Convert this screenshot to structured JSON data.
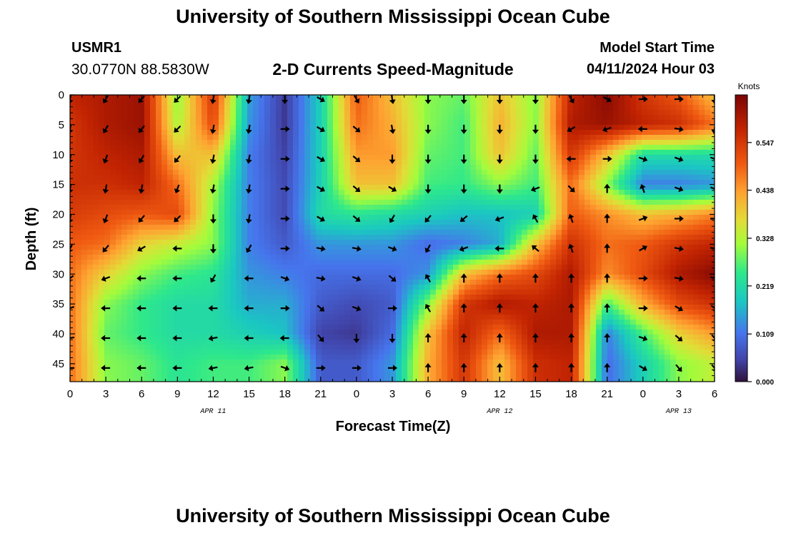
{
  "header": {
    "title": "University of Southern Mississippi Ocean Cube",
    "station_id": "USMR1",
    "station_coords": "30.0770N  88.5830W",
    "model_start_label": "Model Start Time",
    "model_start_value": "04/11/2024 Hour 03"
  },
  "footer": {
    "title": "University of Southern Mississippi Ocean Cube"
  },
  "chart_data": {
    "type": "heatmap",
    "title": "2-D Currents Speed-Magnitude",
    "xlabel": "Forecast Time(Z)",
    "ylabel": "Depth (ft)",
    "x_tick_labels": [
      "0",
      "3",
      "6",
      "9",
      "12",
      "15",
      "18",
      "21",
      "0",
      "3",
      "6",
      "9",
      "12",
      "15",
      "18",
      "21",
      "0",
      "3",
      "6"
    ],
    "date_labels": [
      {
        "text": "APR 11",
        "at_tick": 4
      },
      {
        "text": "APR 12",
        "at_tick": 12
      },
      {
        "text": "APR 13",
        "at_tick": 17
      }
    ],
    "y_ticks": [
      0,
      5,
      10,
      15,
      20,
      25,
      30,
      35,
      40,
      45
    ],
    "ylim": [
      0,
      48
    ],
    "colorbar": {
      "unit_label": "Knots",
      "ticks": [
        "0.547",
        "0.438",
        "0.328",
        "0.219",
        "0.109",
        "0.000"
      ],
      "range": [
        0,
        0.656
      ]
    },
    "depth_rows": [
      0,
      5,
      10,
      15,
      20,
      25,
      30,
      35,
      40,
      45
    ],
    "speed_grid": [
      [
        0.58,
        0.6,
        0.62,
        0.3,
        0.55,
        0.15,
        0.04,
        0.2,
        0.5,
        0.4,
        0.3,
        0.28,
        0.4,
        0.3,
        0.58,
        0.64,
        0.55,
        0.5,
        0.4
      ],
      [
        0.55,
        0.6,
        0.62,
        0.32,
        0.52,
        0.14,
        0.04,
        0.2,
        0.48,
        0.42,
        0.3,
        0.26,
        0.42,
        0.3,
        0.6,
        0.62,
        0.58,
        0.56,
        0.48
      ],
      [
        0.55,
        0.58,
        0.6,
        0.4,
        0.4,
        0.12,
        0.05,
        0.2,
        0.44,
        0.44,
        0.28,
        0.26,
        0.4,
        0.28,
        0.55,
        0.4,
        0.22,
        0.22,
        0.22
      ],
      [
        0.56,
        0.56,
        0.58,
        0.48,
        0.32,
        0.12,
        0.06,
        0.2,
        0.4,
        0.4,
        0.26,
        0.25,
        0.3,
        0.26,
        0.48,
        0.3,
        0.12,
        0.12,
        0.14
      ],
      [
        0.54,
        0.52,
        0.5,
        0.52,
        0.3,
        0.12,
        0.06,
        0.22,
        0.24,
        0.22,
        0.2,
        0.18,
        0.18,
        0.2,
        0.5,
        0.45,
        0.4,
        0.42,
        0.46
      ],
      [
        0.5,
        0.48,
        0.38,
        0.34,
        0.3,
        0.12,
        0.08,
        0.14,
        0.14,
        0.14,
        0.1,
        0.12,
        0.16,
        0.4,
        0.56,
        0.48,
        0.5,
        0.55,
        0.58
      ],
      [
        0.48,
        0.38,
        0.3,
        0.26,
        0.24,
        0.14,
        0.12,
        0.1,
        0.1,
        0.1,
        0.14,
        0.4,
        0.48,
        0.52,
        0.6,
        0.45,
        0.52,
        0.6,
        0.64
      ],
      [
        0.48,
        0.3,
        0.25,
        0.22,
        0.22,
        0.16,
        0.16,
        0.08,
        0.06,
        0.08,
        0.3,
        0.55,
        0.6,
        0.58,
        0.6,
        0.26,
        0.42,
        0.52,
        0.56
      ],
      [
        0.48,
        0.28,
        0.25,
        0.22,
        0.22,
        0.2,
        0.18,
        0.05,
        0.04,
        0.1,
        0.4,
        0.58,
        0.48,
        0.6,
        0.6,
        0.12,
        0.26,
        0.38,
        0.44
      ],
      [
        0.48,
        0.3,
        0.28,
        0.24,
        0.26,
        0.26,
        0.3,
        0.08,
        0.08,
        0.14,
        0.42,
        0.55,
        0.4,
        0.56,
        0.58,
        0.1,
        0.2,
        0.3,
        0.34
      ]
    ],
    "arrow_angles_deg": [
      [
        100,
        120,
        130,
        135,
        100,
        100,
        90,
        30,
        60,
        80,
        90,
        90,
        90,
        90,
        60,
        30,
        0,
        0,
        90
      ],
      [
        100,
        120,
        130,
        135,
        100,
        100,
        0,
        30,
        40,
        80,
        90,
        90,
        90,
        90,
        150,
        160,
        180,
        10,
        100
      ],
      [
        100,
        110,
        120,
        130,
        100,
        100,
        0,
        30,
        40,
        90,
        90,
        90,
        90,
        90,
        180,
        0,
        20,
        20,
        20
      ],
      [
        100,
        100,
        100,
        110,
        100,
        100,
        0,
        30,
        40,
        30,
        90,
        90,
        90,
        160,
        45,
        270,
        250,
        20,
        20
      ],
      [
        100,
        110,
        130,
        135,
        90,
        100,
        0,
        30,
        40,
        120,
        130,
        140,
        160,
        240,
        250,
        270,
        340,
        0,
        0
      ],
      [
        120,
        130,
        150,
        180,
        90,
        120,
        0,
        10,
        10,
        20,
        120,
        160,
        180,
        220,
        250,
        270,
        330,
        10,
        10
      ],
      [
        140,
        160,
        180,
        180,
        120,
        180,
        20,
        10,
        20,
        40,
        240,
        270,
        270,
        270,
        270,
        270,
        0,
        10,
        20
      ],
      [
        160,
        180,
        180,
        180,
        180,
        180,
        0,
        40,
        20,
        0,
        240,
        270,
        270,
        270,
        270,
        270,
        0,
        30,
        40
      ],
      [
        170,
        180,
        180,
        180,
        170,
        180,
        180,
        50,
        90,
        90,
        270,
        270,
        270,
        270,
        270,
        270,
        20,
        40,
        50
      ],
      [
        180,
        180,
        180,
        180,
        170,
        170,
        20,
        0,
        0,
        0,
        270,
        270,
        270,
        270,
        270,
        270,
        30,
        50,
        50
      ]
    ]
  }
}
